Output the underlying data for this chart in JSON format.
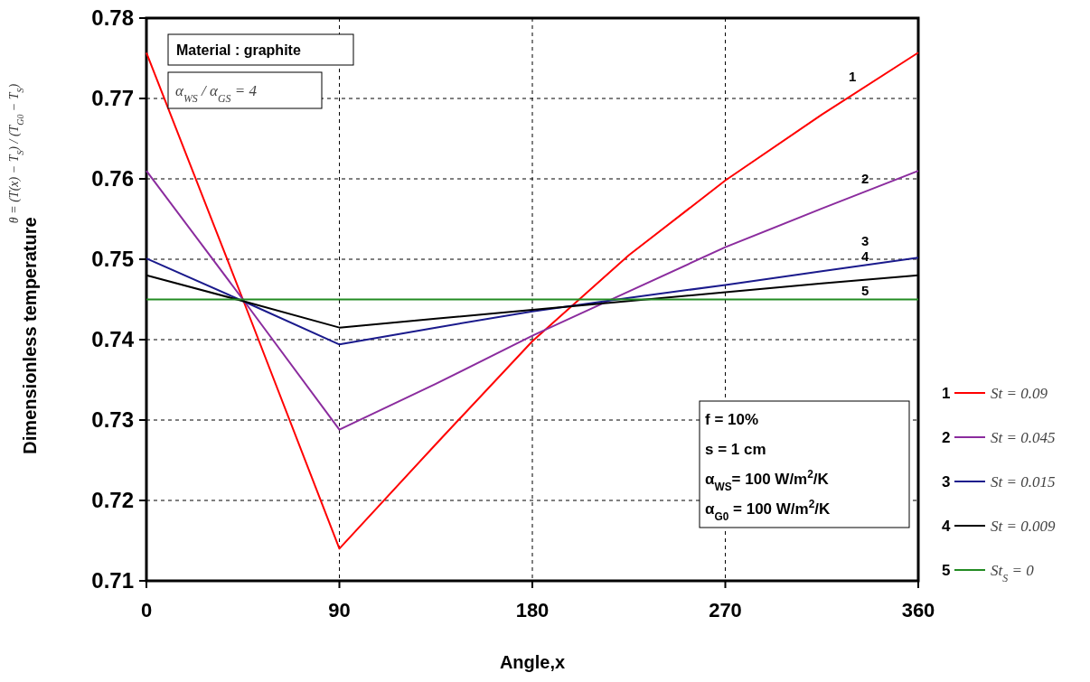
{
  "chart_data": {
    "type": "line",
    "xlabel": "Angle,x",
    "ylabel": "Dimensionless temperature",
    "x": [
      0,
      45,
      90,
      135,
      180,
      225,
      270,
      315,
      360
    ],
    "series": [
      {
        "name": "St = 0.09",
        "color": "#ff0000",
        "values": [
          0.7757,
          0.745,
          0.714,
          0.727,
          0.7398,
          0.7505,
          0.7598,
          0.768,
          0.7757
        ]
      },
      {
        "name": "St = 0.045",
        "color": "#8b2c9e",
        "values": [
          0.761,
          0.745,
          0.7288,
          0.7345,
          0.7405,
          0.746,
          0.7515,
          0.7563,
          0.761
        ]
      },
      {
        "name": "St = 0.015",
        "color": "#1a1a8c",
        "values": [
          0.7501,
          0.7448,
          0.7394,
          0.7415,
          0.7435,
          0.7452,
          0.7468,
          0.7485,
          0.7502
        ]
      },
      {
        "name": "St = 0.009",
        "color": "#000000",
        "values": [
          0.748,
          0.7448,
          0.7415,
          0.7426,
          0.7437,
          0.7448,
          0.7459,
          0.747,
          0.748
        ]
      },
      {
        "name": "St$_{S}$ = 0",
        "color": "#228b22",
        "values": [
          0.745,
          0.745,
          0.745,
          0.745,
          0.745,
          0.745,
          0.745,
          0.745,
          0.745
        ]
      }
    ],
    "xlim": [
      0,
      360
    ],
    "xticks": [
      0,
      90,
      180,
      270,
      360
    ],
    "ylim": [
      0.71,
      0.78
    ],
    "yticks": [
      0.71,
      0.72,
      0.73,
      0.74,
      0.75,
      0.76,
      0.77,
      0.78
    ],
    "grid": true,
    "legend": "right",
    "marker": "none",
    "line_style": "solid",
    "annotations": [
      "Material : graphite",
      "α$_{WS}$ / α$_{GS}$ = 4",
      "f = 10%",
      "s = 1 cm",
      "α$_{WS}$= 100 W/m$^{2}$/K",
      "α$_{G0}$ = 100 W/m$^{2}$/K",
      "θ = (T(x) − T$_{S}$) / (T$_{G0}$ − T$_{S}$)",
      "1",
      "2",
      "3",
      "4",
      "5"
    ]
  }
}
